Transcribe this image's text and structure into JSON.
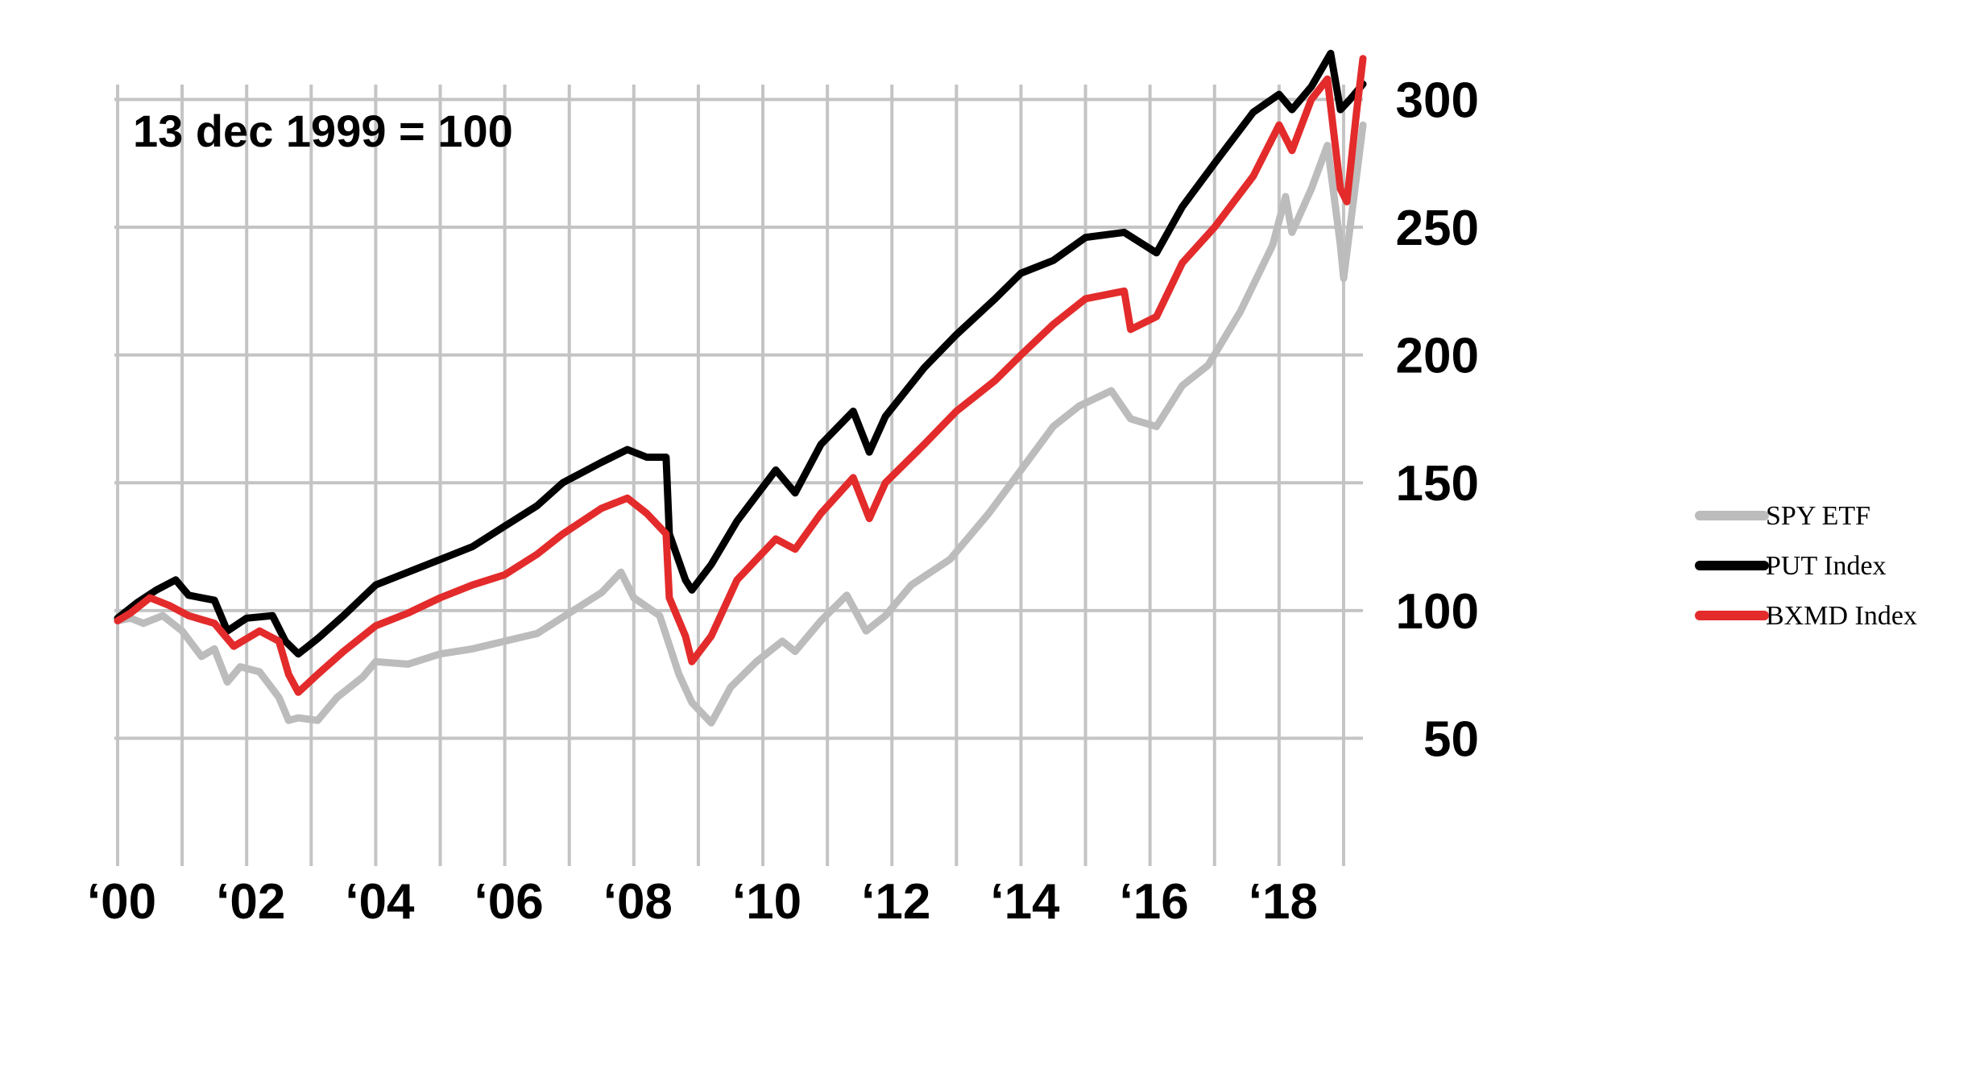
{
  "chart_data": {
    "type": "line",
    "annotation": "13 dec 1999 = 100",
    "x_tick_labels": [
      "‘00",
      "‘02",
      "‘04",
      "‘06",
      "‘08",
      "‘10",
      "‘12",
      "‘14",
      "‘16",
      "‘18"
    ],
    "x_tick_years": [
      2000,
      2002,
      2004,
      2006,
      2008,
      2010,
      2012,
      2014,
      2016,
      2018
    ],
    "xlim": [
      1999.95,
      2019.3
    ],
    "y_ticks": [
      50,
      100,
      150,
      200,
      250,
      300
    ],
    "ylim": [
      0,
      320
    ],
    "grid": true,
    "legend_position": "right",
    "series": [
      {
        "name": "SPY ETF",
        "color": "#bcbcbc",
        "points": [
          [
            2000.0,
            96
          ],
          [
            2000.2,
            97
          ],
          [
            2000.4,
            95
          ],
          [
            2000.7,
            98
          ],
          [
            2001.0,
            92
          ],
          [
            2001.3,
            82
          ],
          [
            2001.5,
            85
          ],
          [
            2001.7,
            72
          ],
          [
            2001.9,
            78
          ],
          [
            2002.2,
            76
          ],
          [
            2002.5,
            66
          ],
          [
            2002.65,
            57
          ],
          [
            2002.8,
            58
          ],
          [
            2003.1,
            57
          ],
          [
            2003.4,
            66
          ],
          [
            2003.8,
            74
          ],
          [
            2004.0,
            80
          ],
          [
            2004.5,
            79
          ],
          [
            2005.0,
            83
          ],
          [
            2005.5,
            85
          ],
          [
            2006.0,
            88
          ],
          [
            2006.5,
            91
          ],
          [
            2007.0,
            99
          ],
          [
            2007.5,
            107
          ],
          [
            2007.8,
            115
          ],
          [
            2008.0,
            105
          ],
          [
            2008.4,
            98
          ],
          [
            2008.7,
            75
          ],
          [
            2008.9,
            64
          ],
          [
            2009.2,
            56
          ],
          [
            2009.5,
            70
          ],
          [
            2009.9,
            80
          ],
          [
            2010.3,
            88
          ],
          [
            2010.5,
            84
          ],
          [
            2010.9,
            96
          ],
          [
            2011.3,
            106
          ],
          [
            2011.6,
            92
          ],
          [
            2011.9,
            98
          ],
          [
            2012.3,
            110
          ],
          [
            2012.9,
            120
          ],
          [
            2013.5,
            138
          ],
          [
            2014.0,
            155
          ],
          [
            2014.5,
            172
          ],
          [
            2014.9,
            180
          ],
          [
            2015.4,
            186
          ],
          [
            2015.7,
            175
          ],
          [
            2016.1,
            172
          ],
          [
            2016.5,
            188
          ],
          [
            2016.9,
            196
          ],
          [
            2017.4,
            217
          ],
          [
            2017.9,
            243
          ],
          [
            2018.1,
            262
          ],
          [
            2018.2,
            248
          ],
          [
            2018.5,
            265
          ],
          [
            2018.75,
            282
          ],
          [
            2018.95,
            243
          ],
          [
            2019.0,
            230
          ],
          [
            2019.1,
            250
          ],
          [
            2019.3,
            290
          ]
        ]
      },
      {
        "name": "PUT Index",
        "color": "#000000",
        "points": [
          [
            2000.0,
            97
          ],
          [
            2000.3,
            103
          ],
          [
            2000.6,
            108
          ],
          [
            2000.9,
            112
          ],
          [
            2001.1,
            106
          ],
          [
            2001.5,
            104
          ],
          [
            2001.7,
            92
          ],
          [
            2002.0,
            97
          ],
          [
            2002.4,
            98
          ],
          [
            2002.6,
            88
          ],
          [
            2002.8,
            83
          ],
          [
            2003.1,
            89
          ],
          [
            2003.5,
            98
          ],
          [
            2004.0,
            110
          ],
          [
            2004.5,
            115
          ],
          [
            2005.0,
            120
          ],
          [
            2005.5,
            125
          ],
          [
            2006.0,
            133
          ],
          [
            2006.5,
            141
          ],
          [
            2006.9,
            150
          ],
          [
            2007.5,
            158
          ],
          [
            2007.9,
            163
          ],
          [
            2008.2,
            160
          ],
          [
            2008.5,
            160
          ],
          [
            2008.55,
            130
          ],
          [
            2008.8,
            112
          ],
          [
            2008.9,
            108
          ],
          [
            2009.2,
            118
          ],
          [
            2009.6,
            135
          ],
          [
            2010.2,
            155
          ],
          [
            2010.5,
            146
          ],
          [
            2010.9,
            165
          ],
          [
            2011.4,
            178
          ],
          [
            2011.65,
            162
          ],
          [
            2011.9,
            176
          ],
          [
            2012.5,
            195
          ],
          [
            2013.0,
            208
          ],
          [
            2013.6,
            222
          ],
          [
            2014.0,
            232
          ],
          [
            2014.5,
            237
          ],
          [
            2015.0,
            246
          ],
          [
            2015.6,
            248
          ],
          [
            2016.1,
            240
          ],
          [
            2016.5,
            258
          ],
          [
            2017.0,
            275
          ],
          [
            2017.6,
            295
          ],
          [
            2018.0,
            302
          ],
          [
            2018.2,
            296
          ],
          [
            2018.5,
            305
          ],
          [
            2018.8,
            318
          ],
          [
            2018.95,
            296
          ],
          [
            2019.1,
            300
          ],
          [
            2019.3,
            306
          ]
        ]
      },
      {
        "name": "BXMD Index",
        "color": "#e32b2b",
        "points": [
          [
            2000.0,
            96
          ],
          [
            2000.2,
            99
          ],
          [
            2000.5,
            105
          ],
          [
            2000.8,
            102
          ],
          [
            2001.1,
            98
          ],
          [
            2001.5,
            95
          ],
          [
            2001.8,
            86
          ],
          [
            2002.2,
            92
          ],
          [
            2002.5,
            88
          ],
          [
            2002.65,
            75
          ],
          [
            2002.8,
            68
          ],
          [
            2003.1,
            75
          ],
          [
            2003.5,
            84
          ],
          [
            2004.0,
            94
          ],
          [
            2004.5,
            99
          ],
          [
            2005.0,
            105
          ],
          [
            2005.5,
            110
          ],
          [
            2006.0,
            114
          ],
          [
            2006.5,
            122
          ],
          [
            2006.9,
            130
          ],
          [
            2007.5,
            140
          ],
          [
            2007.9,
            144
          ],
          [
            2008.2,
            138
          ],
          [
            2008.5,
            130
          ],
          [
            2008.55,
            105
          ],
          [
            2008.8,
            90
          ],
          [
            2008.9,
            80
          ],
          [
            2009.2,
            90
          ],
          [
            2009.6,
            112
          ],
          [
            2010.2,
            128
          ],
          [
            2010.5,
            124
          ],
          [
            2010.9,
            138
          ],
          [
            2011.4,
            152
          ],
          [
            2011.65,
            136
          ],
          [
            2011.9,
            150
          ],
          [
            2012.5,
            165
          ],
          [
            2013.0,
            178
          ],
          [
            2013.6,
            190
          ],
          [
            2014.0,
            200
          ],
          [
            2014.5,
            212
          ],
          [
            2015.0,
            222
          ],
          [
            2015.6,
            225
          ],
          [
            2015.7,
            210
          ],
          [
            2016.1,
            215
          ],
          [
            2016.5,
            236
          ],
          [
            2017.0,
            250
          ],
          [
            2017.6,
            270
          ],
          [
            2018.0,
            290
          ],
          [
            2018.2,
            280
          ],
          [
            2018.5,
            300
          ],
          [
            2018.75,
            308
          ],
          [
            2018.95,
            265
          ],
          [
            2019.05,
            260
          ],
          [
            2019.2,
            295
          ],
          [
            2019.3,
            316
          ]
        ]
      }
    ]
  }
}
